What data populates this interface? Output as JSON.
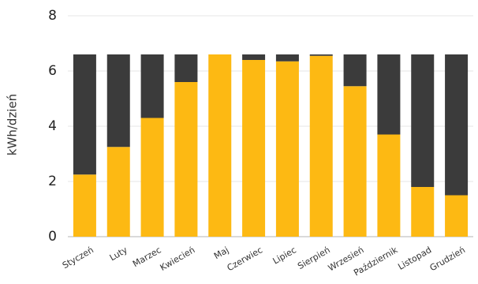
{
  "chart_data": {
    "type": "bar",
    "stacked": true,
    "categories": [
      "Styczeń",
      "Luty",
      "Marzec",
      "Kwiecień",
      "Maj",
      "Czerwiec",
      "Lipiec",
      "Sierpień",
      "Wrzesień",
      "Październik",
      "Listopad",
      "Grudzień"
    ],
    "series": [
      {
        "color": "#fdb913",
        "values": [
          2.25,
          3.25,
          4.3,
          5.6,
          6.6,
          6.4,
          6.35,
          6.55,
          5.45,
          3.7,
          1.8,
          1.5
        ]
      },
      {
        "color": "#3b3b3b",
        "values": [
          4.35,
          3.35,
          2.3,
          1.0,
          0.0,
          0.2,
          0.25,
          0.05,
          1.15,
          2.9,
          4.8,
          5.1
        ]
      }
    ],
    "ylabel": "kWh/dzień",
    "ylim": [
      0,
      8
    ],
    "yticks": [
      0,
      2,
      4,
      6,
      8
    ],
    "grid": true,
    "legend": "none"
  }
}
